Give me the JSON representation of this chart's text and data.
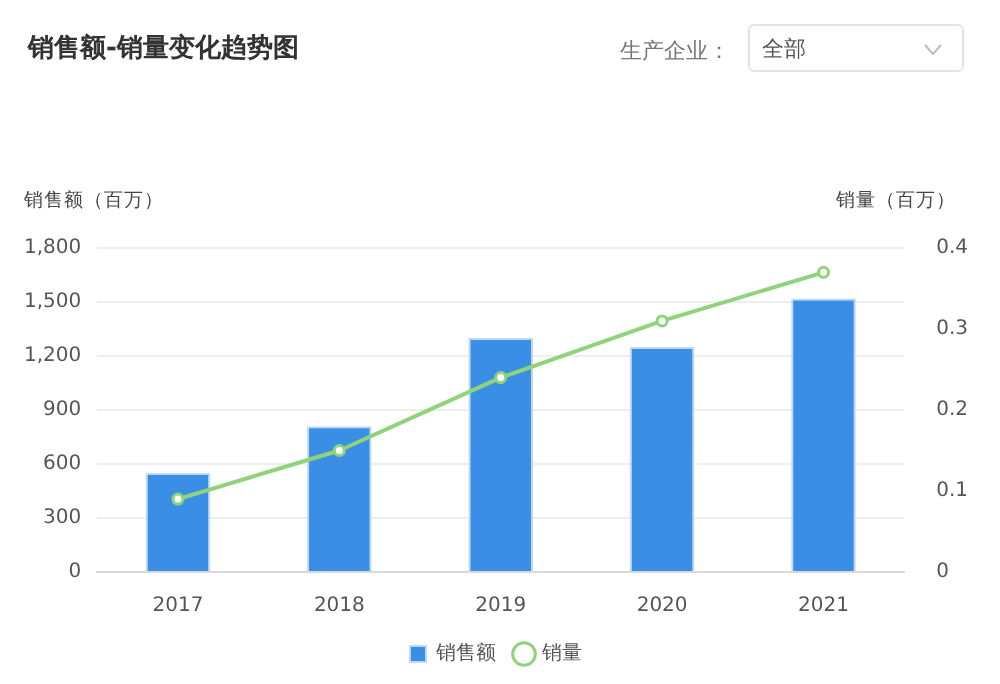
{
  "chart_data": {
    "type": "bar",
    "title": "销售额-销量变化趋势图",
    "ylabel": "销售额（百万）",
    "y2label": "销量（百万）",
    "annotations": [
      "生产企业：",
      "全部"
    ],
    "categories": [
      "2017",
      "2018",
      "2019",
      "2020",
      "2021"
    ],
    "series": [
      {
        "name": "销售额",
        "color": "#3a8ee6",
        "values": [
          550,
          810,
          1300,
          1250,
          1520
        ]
      },
      {
        "name": "销量",
        "type": "line",
        "axis": "y2",
        "color": "#8fd37a",
        "marker": "circle",
        "values": [
          0.09,
          0.15,
          0.24,
          0.31,
          0.37
        ]
      }
    ],
    "ylim": [
      0,
      1800
    ],
    "yticks": [
      0,
      300,
      600,
      900,
      {
        "value": 1200,
        "label": "1,200"
      },
      {
        "value": 1500,
        "label": "1,500"
      },
      {
        "value": 1800,
        "label": "1,800"
      }
    ],
    "y2lim": [
      0,
      0.4
    ],
    "y2ticks": [
      0,
      0.1,
      0.2,
      0.3,
      0.4
    ],
    "grid": "y",
    "legend": "bottom"
  }
}
